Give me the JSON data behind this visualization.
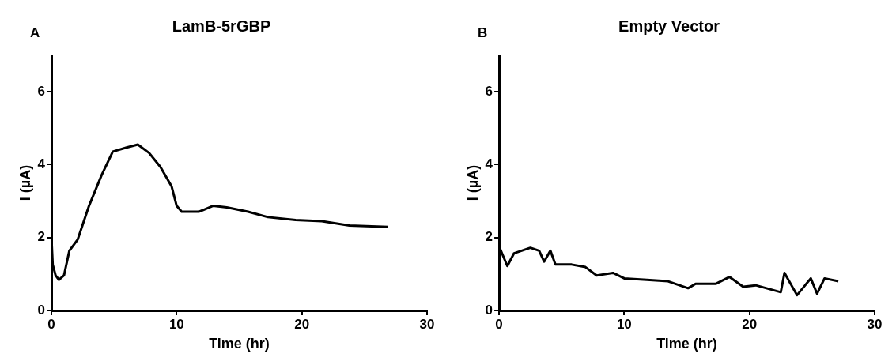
{
  "chart_data": [
    {
      "type": "line",
      "title": "LamB-5rGBP",
      "xlabel": "Time (hr)",
      "ylabel": "I (µA)",
      "annotations": [
        "A"
      ],
      "xlim": [
        0,
        30
      ],
      "xticks": [
        0,
        10,
        20,
        30
      ],
      "ylim": [
        0,
        7
      ],
      "yticks": [
        0,
        2,
        4,
        6
      ],
      "grid": false,
      "legend": false,
      "marker": "none",
      "line_style": "solid",
      "series": [
        {
          "color": "#000000",
          "x": [
            0,
            0.1,
            0.33,
            0.6,
            1.0,
            1.43,
            2.1,
            3.0,
            4.0,
            4.9,
            6.0,
            6.9,
            7.8,
            8.7,
            9.6,
            10.0,
            10.4,
            11.8,
            12.9,
            14.0,
            15.7,
            17.3,
            19.5,
            21.6,
            23.8,
            26.9
          ],
          "values": [
            2.0,
            1.26,
            0.96,
            0.84,
            0.96,
            1.64,
            1.95,
            2.87,
            3.71,
            4.36,
            4.47,
            4.55,
            4.32,
            3.94,
            3.4,
            2.87,
            2.71,
            2.71,
            2.87,
            2.83,
            2.71,
            2.56,
            2.48,
            2.45,
            2.33,
            2.29
          ]
        }
      ]
    },
    {
      "type": "line",
      "title": "Empty Vector",
      "xlabel": "Time (hr)",
      "ylabel": "I (µA)",
      "annotations": [
        "B"
      ],
      "xlim": [
        0,
        30
      ],
      "xticks": [
        0,
        10,
        20,
        30
      ],
      "ylim": [
        0,
        7
      ],
      "yticks": [
        0,
        2,
        4,
        6
      ],
      "grid": false,
      "legend": false,
      "marker": "none",
      "line_style": "solid",
      "series": [
        {
          "color": "#000000",
          "x": [
            0,
            0.33,
            0.66,
            1.2,
            2.5,
            3.2,
            3.6,
            4.1,
            4.5,
            5.8,
            6.9,
            7.8,
            9.1,
            10.0,
            11.8,
            13.5,
            15.1,
            15.7,
            17.3,
            18.4,
            19.5,
            20.5,
            22.5,
            22.8,
            23.8,
            24.9,
            25.4,
            26.0,
            27.1
          ],
          "values": [
            1.76,
            1.49,
            1.22,
            1.57,
            1.72,
            1.64,
            1.34,
            1.64,
            1.26,
            1.26,
            1.19,
            0.96,
            1.03,
            0.88,
            0.84,
            0.8,
            0.61,
            0.73,
            0.73,
            0.92,
            0.65,
            0.69,
            0.5,
            1.03,
            0.42,
            0.88,
            0.46,
            0.88,
            0.8
          ]
        }
      ]
    }
  ]
}
